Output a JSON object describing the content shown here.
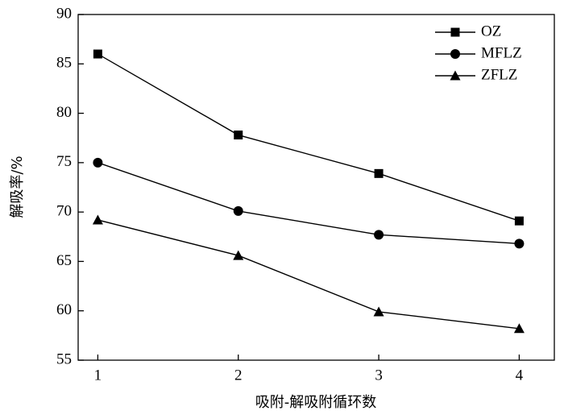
{
  "chart_data": {
    "type": "line",
    "x_label": "吸附-解吸附循环数",
    "y_label": "解吸率/%",
    "x": [
      1,
      2,
      3,
      4
    ],
    "series": [
      {
        "name": "OZ",
        "color": "#000000",
        "marker": "square",
        "values": [
          86,
          77.8,
          73.9,
          69.1
        ]
      },
      {
        "name": "MFLZ",
        "color": "#000000",
        "marker": "circle",
        "values": [
          75,
          70.1,
          67.7,
          66.8
        ]
      },
      {
        "name": "ZFLZ",
        "color": "#000000",
        "marker": "triangle",
        "values": [
          69.2,
          65.6,
          59.9,
          58.2
        ]
      }
    ],
    "xlim": [
      0.86,
      4.25
    ],
    "xticks": [
      1,
      2,
      3,
      4
    ],
    "ylim": [
      55,
      90
    ],
    "yticks": [
      55,
      60,
      65,
      70,
      75,
      80,
      85,
      90
    ],
    "grid": false,
    "legend": "upper right"
  }
}
